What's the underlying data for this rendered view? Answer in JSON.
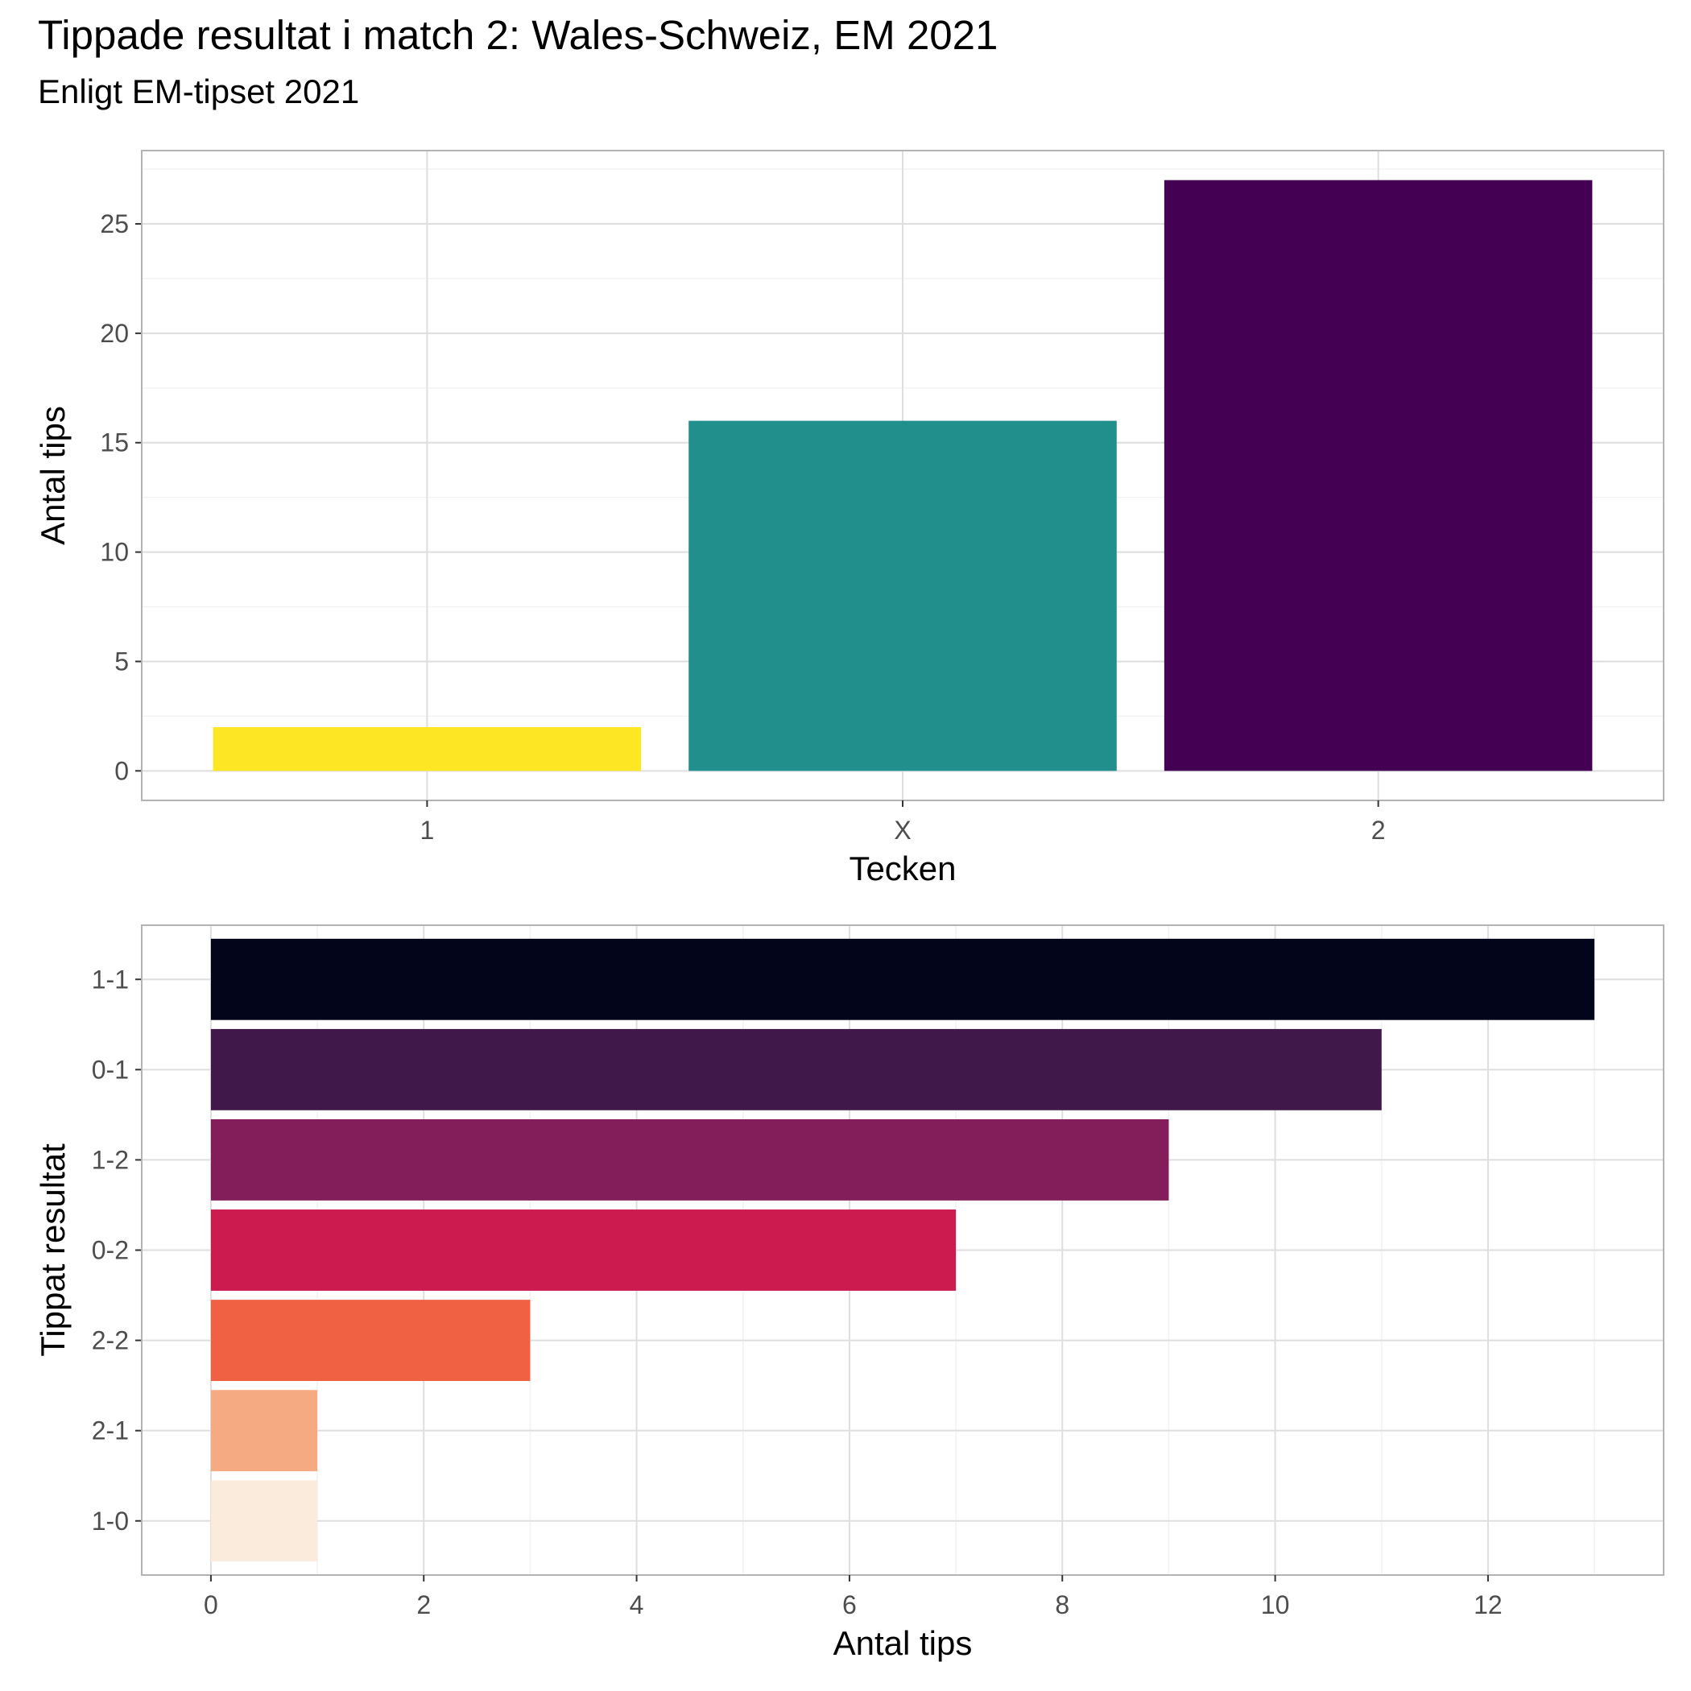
{
  "title": "Tippade resultat i match 2: Wales-Schweiz, EM 2021",
  "subtitle": "Enligt EM-tipset 2021",
  "chart_data": [
    {
      "type": "bar",
      "orientation": "vertical",
      "categories": [
        "1",
        "X",
        "2"
      ],
      "values": [
        2,
        16,
        27
      ],
      "colors": [
        "#FDE725",
        "#21908C",
        "#440154"
      ],
      "xlabel": "Tecken",
      "ylabel": "Antal tips",
      "ylim": [
        -1.35,
        28.35
      ],
      "yticks": [
        0,
        5,
        10,
        15,
        20,
        25
      ],
      "grid": true,
      "legend": "none"
    },
    {
      "type": "bar",
      "orientation": "horizontal",
      "categories": [
        "1-1",
        "0-1",
        "1-2",
        "0-2",
        "2-2",
        "2-1",
        "1-0"
      ],
      "values": [
        13,
        11,
        9,
        7,
        3,
        1,
        1
      ],
      "colors": [
        "#03051A",
        "#40184A",
        "#841E5A",
        "#CB1B4F",
        "#F06043",
        "#F6AA82",
        "#FAEBDD"
      ],
      "xlabel": "Antal tips",
      "ylabel": "Tippat resultat",
      "xlim": [
        -0.65,
        13.65
      ],
      "xticks": [
        0,
        2,
        4,
        6,
        8,
        10,
        12
      ],
      "grid": true,
      "legend": "none"
    }
  ]
}
